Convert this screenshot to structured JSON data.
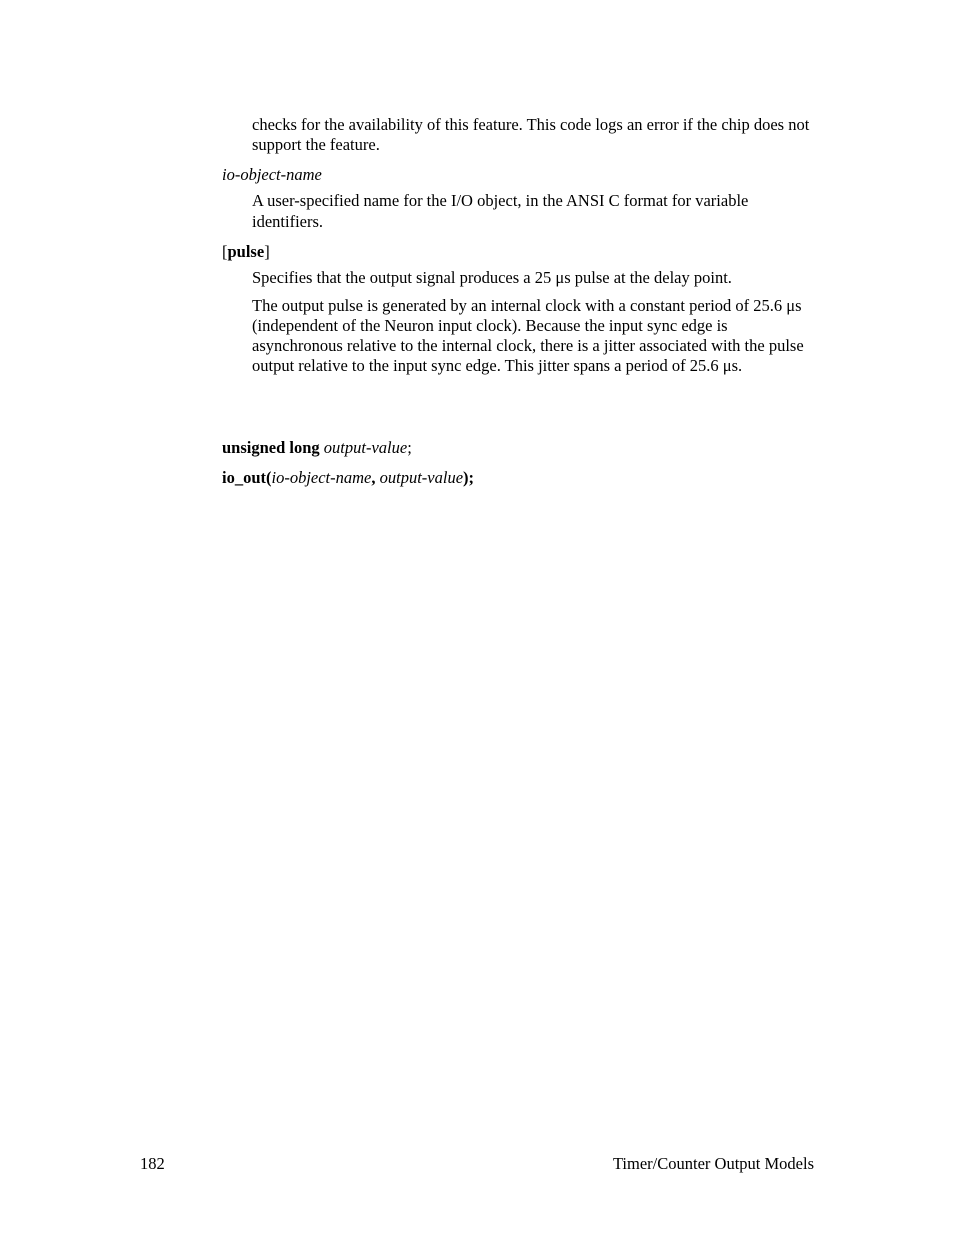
{
  "body": {
    "continued_para": "checks for the availability of this feature.  This code logs an error if the chip does not support the feature.",
    "term_ioobj": "io-object-name",
    "ioobj_desc": "A user-specified name for the I/O object, in the ANSI C format for variable identifiers.",
    "term_pulse_open": "[",
    "term_pulse_word": "pulse",
    "term_pulse_close": "]",
    "pulse_para1": "Specifies that the output signal produces a 25 μs pulse at the delay point.",
    "pulse_para2": "The output pulse is generated by an internal clock with a constant period of 25.6 μs (independent of the Neuron input clock).  Because the input sync edge is asynchronous relative to the internal clock, there is a jitter associated with the pulse output relative to the input sync edge.  This jitter spans a period of 25.6 μs.",
    "usage": {
      "line1_bold": "unsigned long",
      "line1_space": " ",
      "line1_italic": "output-value",
      "line1_end": ";",
      "line2_bold1": "io_out(",
      "line2_ital1": "io-object-name",
      "line2_bold2": ", ",
      "line2_ital2": "output-value",
      "line2_bold3": ");"
    }
  },
  "footer": {
    "page_num": "182",
    "section": "Timer/Counter Output Models"
  }
}
